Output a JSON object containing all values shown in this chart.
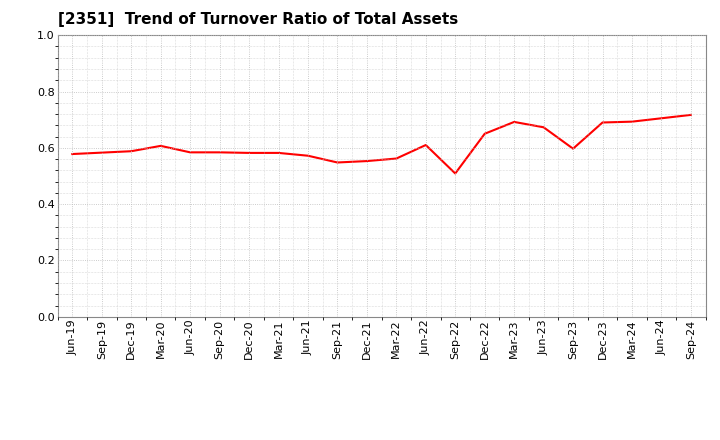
{
  "title": "[2351]  Trend of Turnover Ratio of Total Assets",
  "x_labels": [
    "Jun-19",
    "Sep-19",
    "Dec-19",
    "Mar-20",
    "Jun-20",
    "Sep-20",
    "Dec-20",
    "Mar-21",
    "Jun-21",
    "Sep-21",
    "Dec-21",
    "Mar-22",
    "Jun-22",
    "Sep-22",
    "Dec-22",
    "Mar-23",
    "Jun-23",
    "Sep-23",
    "Dec-23",
    "Mar-24",
    "Jun-24",
    "Sep-24"
  ],
  "y_values": [
    0.578,
    0.583,
    0.588,
    0.607,
    0.584,
    0.584,
    0.582,
    0.582,
    0.572,
    0.548,
    0.553,
    0.562,
    0.61,
    0.509,
    0.65,
    0.692,
    0.673,
    0.597,
    0.69,
    0.693,
    0.705,
    0.717
  ],
  "line_color": "#FF0000",
  "line_width": 1.5,
  "ylim": [
    0.0,
    1.0
  ],
  "yticks": [
    0.0,
    0.2,
    0.4,
    0.6,
    0.8,
    1.0
  ],
  "grid_color": "#bbbbbb",
  "background_color": "#ffffff",
  "title_fontsize": 11,
  "tick_fontsize": 8
}
